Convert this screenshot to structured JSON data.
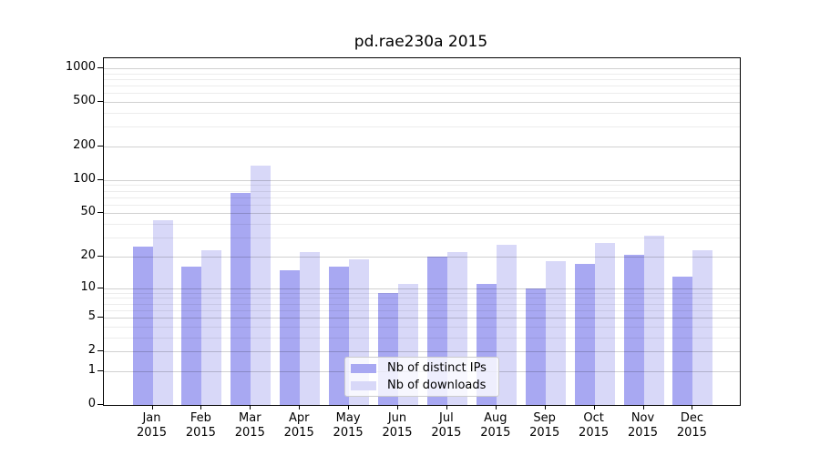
{
  "title": "pd.rae230a 2015",
  "colors": {
    "bar_ips": "#a8a8f2",
    "bar_downloads": "#d8d8f8",
    "grid_major": "rgba(0,0,0,0.18)",
    "grid_minor": "rgba(0,0,0,0.075)",
    "axis": "#000000",
    "legend_border": "#cccccc",
    "legend_bg": "rgba(255,255,255,0.8)",
    "text": "#000000"
  },
  "legend": {
    "items": [
      {
        "label": "Nb of distinct IPs",
        "series": "ips"
      },
      {
        "label": "Nb of downloads",
        "series": "downloads"
      }
    ]
  },
  "chart_data": {
    "type": "bar",
    "title": "pd.rae230a 2015",
    "x_months": [
      "Jan",
      "Feb",
      "Mar",
      "Apr",
      "May",
      "Jun",
      "Jul",
      "Aug",
      "Sep",
      "Oct",
      "Nov",
      "Dec"
    ],
    "x_year": "2015",
    "categories": [
      "Jan 2015",
      "Feb 2015",
      "Mar 2015",
      "Apr 2015",
      "May 2015",
      "Jun 2015",
      "Jul 2015",
      "Aug 2015",
      "Sep 2015",
      "Oct 2015",
      "Nov 2015",
      "Dec 2015"
    ],
    "series": [
      {
        "name": "Nb of distinct IPs",
        "color_key": "bar_ips",
        "values": [
          25,
          16,
          76,
          15,
          16,
          9,
          20,
          11,
          10,
          17,
          21,
          13
        ]
      },
      {
        "name": "Nb of downloads",
        "color_key": "bar_downloads",
        "values": [
          43,
          23,
          135,
          22,
          19,
          11,
          22,
          26,
          18,
          27,
          31,
          23
        ]
      }
    ],
    "yscale": "log1p",
    "ylim": [
      0,
      1000
    ],
    "yticks": [
      0,
      1,
      2,
      5,
      10,
      20,
      50,
      100,
      200,
      500,
      1000
    ],
    "minor_gridlines": [
      3,
      4,
      6,
      7,
      8,
      9,
      30,
      40,
      60,
      70,
      80,
      90,
      300,
      400,
      600,
      700,
      800,
      900
    ],
    "grid": true,
    "legend_position": "lower center",
    "xlabel": "",
    "ylabel": ""
  }
}
